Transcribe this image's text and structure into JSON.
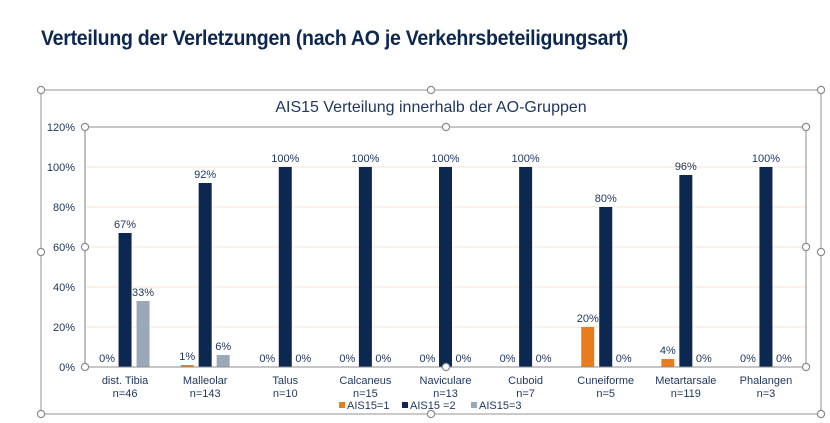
{
  "page": {
    "title": "Verteilung der Verletzungen (nach AO je Verkehrsbeteiligungsart)"
  },
  "chart_data": {
    "type": "bar",
    "title": "AIS15 Verteilung innerhalb der AO-Gruppen",
    "xlabel": "",
    "ylabel": "",
    "ylim": [
      0,
      120
    ],
    "y_ticks": [
      "0%",
      "20%",
      "40%",
      "60%",
      "80%",
      "100%",
      "120%"
    ],
    "y_tick_values": [
      0,
      20,
      40,
      60,
      80,
      100,
      120
    ],
    "grid": true,
    "legend_position": "bottom",
    "categories": [
      "dist. Tibia",
      "Malleolar",
      "Talus",
      "Calcaneus",
      "Naviculare",
      "Cuboid",
      "Cuneiforme",
      "Metartarsale",
      "Phalangen"
    ],
    "category_n": [
      "n=46",
      "n=143",
      "n=10",
      "n=15",
      "n=13",
      "n=7",
      "n=5",
      "n=119",
      "n=3"
    ],
    "series": [
      {
        "name": "AIS15=1",
        "color": "#e87d1e",
        "values": [
          0,
          1,
          0,
          0,
          0,
          0,
          20,
          4,
          0
        ],
        "labels": [
          "0%",
          "1%",
          "0%",
          "0%",
          "0%",
          "0%",
          "20%",
          "4%",
          "0%"
        ]
      },
      {
        "name": "AIS15 =2",
        "color": "#0c2750",
        "values": [
          67,
          92,
          100,
          100,
          100,
          100,
          80,
          96,
          100
        ],
        "labels": [
          "67%",
          "92%",
          "100%",
          "100%",
          "100%",
          "100%",
          "80%",
          "96%",
          "100%"
        ]
      },
      {
        "name": "AIS15=3",
        "color": "#9aa8b8",
        "values": [
          33,
          6,
          0,
          0,
          0,
          0,
          0,
          0,
          0
        ],
        "labels": [
          "33%",
          "6%",
          "0%",
          "0%",
          "0%",
          "0%",
          "0%",
          "0%",
          "0%"
        ]
      }
    ]
  }
}
